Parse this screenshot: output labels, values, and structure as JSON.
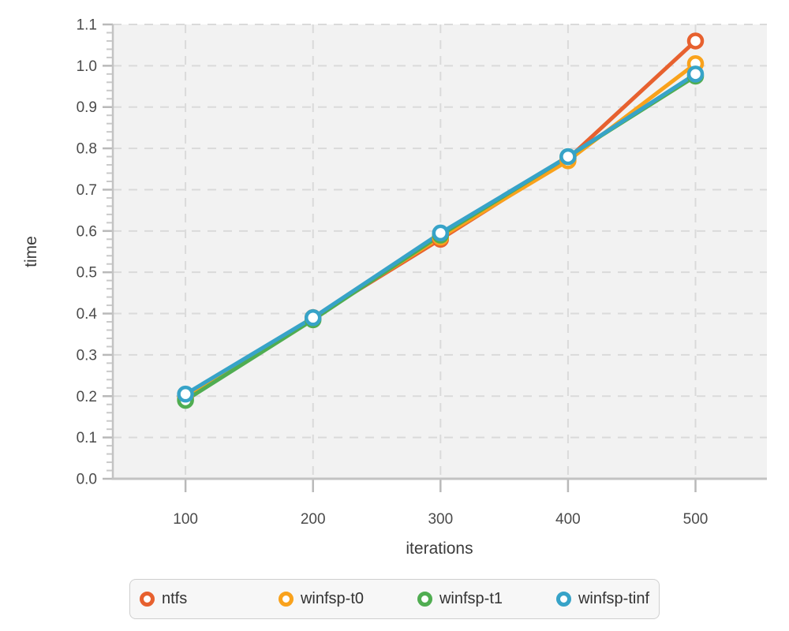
{
  "figure": {
    "plot_background": "#f2f2f2",
    "grid_color": "#dadada",
    "axis_line_color": "#c3c3c3",
    "major_tick_color": "#b9b9b9",
    "minor_tick_color": "#c9c9c9",
    "tick_label_color": "#4b4b4b",
    "axis_title_color": "#3c3c3c",
    "legend_background": "#f7f7f7",
    "legend_border_color": "#cfcfcf"
  },
  "chart_data": {
    "type": "line",
    "title": "",
    "xlabel": "iterations",
    "ylabel": "time",
    "x": [
      100,
      200,
      300,
      400,
      500
    ],
    "series": [
      {
        "name": "ntfs",
        "color": "#e7612f",
        "values": [
          0.2,
          0.39,
          0.58,
          0.775,
          1.06
        ]
      },
      {
        "name": "winfsp-t0",
        "color": "#f9a21c",
        "values": [
          0.195,
          0.39,
          0.585,
          0.77,
          1.005
        ]
      },
      {
        "name": "winfsp-t1",
        "color": "#50ad51",
        "values": [
          0.19,
          0.385,
          0.59,
          0.78,
          0.975
        ]
      },
      {
        "name": "winfsp-tinf",
        "color": "#37a3c8",
        "values": [
          0.205,
          0.39,
          0.595,
          0.78,
          0.98
        ]
      }
    ],
    "x_ticks": [
      100,
      200,
      300,
      400,
      500
    ],
    "y_ticks": [
      0.0,
      0.1,
      0.2,
      0.3,
      0.4,
      0.5,
      0.6,
      0.7,
      0.8,
      0.9,
      1.0,
      1.1
    ],
    "y_minor_step": 0.02,
    "xlim": [
      43,
      556
    ],
    "ylim": [
      0,
      1.1
    ],
    "grid": true,
    "marker": "open-circle",
    "legend_position": "bottom"
  },
  "legend": {
    "items": [
      "ntfs",
      "winfsp-t0",
      "winfsp-t1",
      "winfsp-tinf"
    ]
  }
}
